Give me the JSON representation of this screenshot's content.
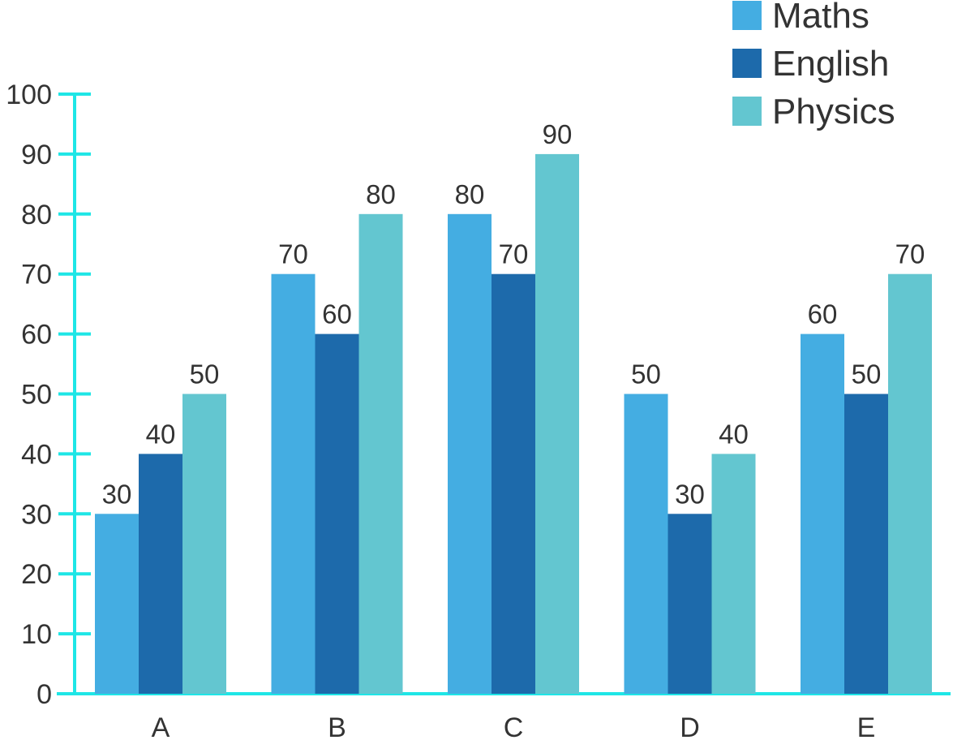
{
  "chart_data": {
    "type": "bar",
    "categories": [
      "A",
      "B",
      "C",
      "D",
      "E"
    ],
    "series": [
      {
        "name": "Maths",
        "values": [
          30,
          70,
          80,
          50,
          60
        ]
      },
      {
        "name": "English",
        "values": [
          40,
          60,
          70,
          30,
          50
        ]
      },
      {
        "name": "Physics",
        "values": [
          50,
          80,
          90,
          40,
          70
        ]
      }
    ],
    "title": "",
    "xlabel": "",
    "ylabel": "",
    "ylim": [
      0,
      100
    ],
    "yticks": [
      0,
      10,
      20,
      30,
      40,
      50,
      60,
      70,
      80,
      90,
      100
    ],
    "grid": false,
    "legend_position": "top-right",
    "data_labels": true,
    "colors": {
      "Maths": "#44ade2",
      "English": "#1d6aab",
      "Physics": "#63c6d0",
      "axis": "#1ee6e6"
    }
  }
}
